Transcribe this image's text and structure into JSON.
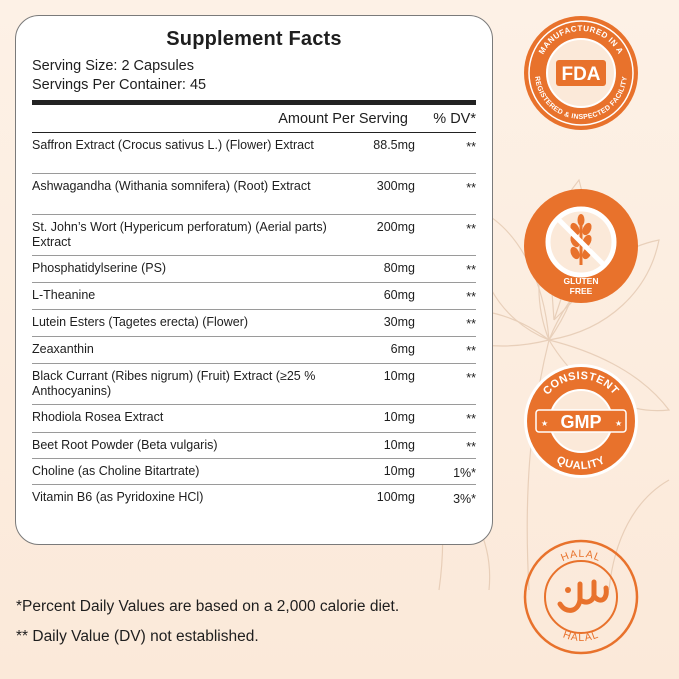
{
  "facts": {
    "title": "Supplement Facts",
    "serving_size": "Serving Size: 2 Capsules",
    "servings_per_container": "Servings Per Container: 45",
    "col_amount": "Amount Per Serving",
    "col_dv": "% DV*",
    "rows": [
      {
        "name": "Saffron Extract (Crocus sativus L.) (Flower) Extract",
        "amount": "88.5mg",
        "dv": "**"
      },
      {
        "name": "Ashwagandha (Withania somnifera) (Root) Extract",
        "amount": "300mg",
        "dv": "**"
      },
      {
        "name": "St. John’s Wort (Hypericum perforatum) (Aerial parts) Extract",
        "amount": "200mg",
        "dv": "**"
      },
      {
        "name": "Phosphatidylserine (PS)",
        "amount": "80mg",
        "dv": "**"
      },
      {
        "name": "L-Theanine",
        "amount": "60mg",
        "dv": "**"
      },
      {
        "name": "Lutein Esters (Tagetes erecta) (Flower)",
        "amount": "30mg",
        "dv": "**"
      },
      {
        "name": "Zeaxanthin",
        "amount": "6mg",
        "dv": "**"
      },
      {
        "name": "Black Currant (Ribes nigrum) (Fruit) Extract (≥25 % Anthocyanins)",
        "amount": "10mg",
        "dv": "**"
      },
      {
        "name": "Rhodiola Rosea Extract",
        "amount": "10mg",
        "dv": "**"
      },
      {
        "name": "Beet Root Powder (Beta vulgaris)",
        "amount": "10mg",
        "dv": "**"
      },
      {
        "name": "Choline (as Choline Bitartrate)",
        "amount": "10mg",
        "dv": "1%*"
      },
      {
        "name": "Vitamin B6 (as Pyridoxine HCl)",
        "amount": "100mg",
        "dv": "3%*"
      }
    ]
  },
  "footnotes": {
    "line1": "*Percent Daily Values are based on a 2,000 calorie diet.",
    "line2": "** Daily Value (DV) not established."
  },
  "badges": {
    "fda": {
      "ring_text": "MANUFACTURED IN A REGISTERED & INSPECTED FACILITY",
      "center": "FDA",
      "icon": "fda-seal-icon"
    },
    "gluten": {
      "label_line1": "GLUTEN",
      "label_line2": "FREE",
      "icon": "wheat-crossed-icon"
    },
    "gmp": {
      "top": "CONSISTENT",
      "center": "GMP",
      "bottom": "QUALITY",
      "icon": "gmp-seal-icon"
    },
    "halal": {
      "top": "HALAL",
      "bottom": "HALAL",
      "icon": "halal-arabic-icon"
    }
  },
  "colors": {
    "accent": "#e8722c",
    "text": "#1e1e1e",
    "background": "#fdf1e6"
  }
}
